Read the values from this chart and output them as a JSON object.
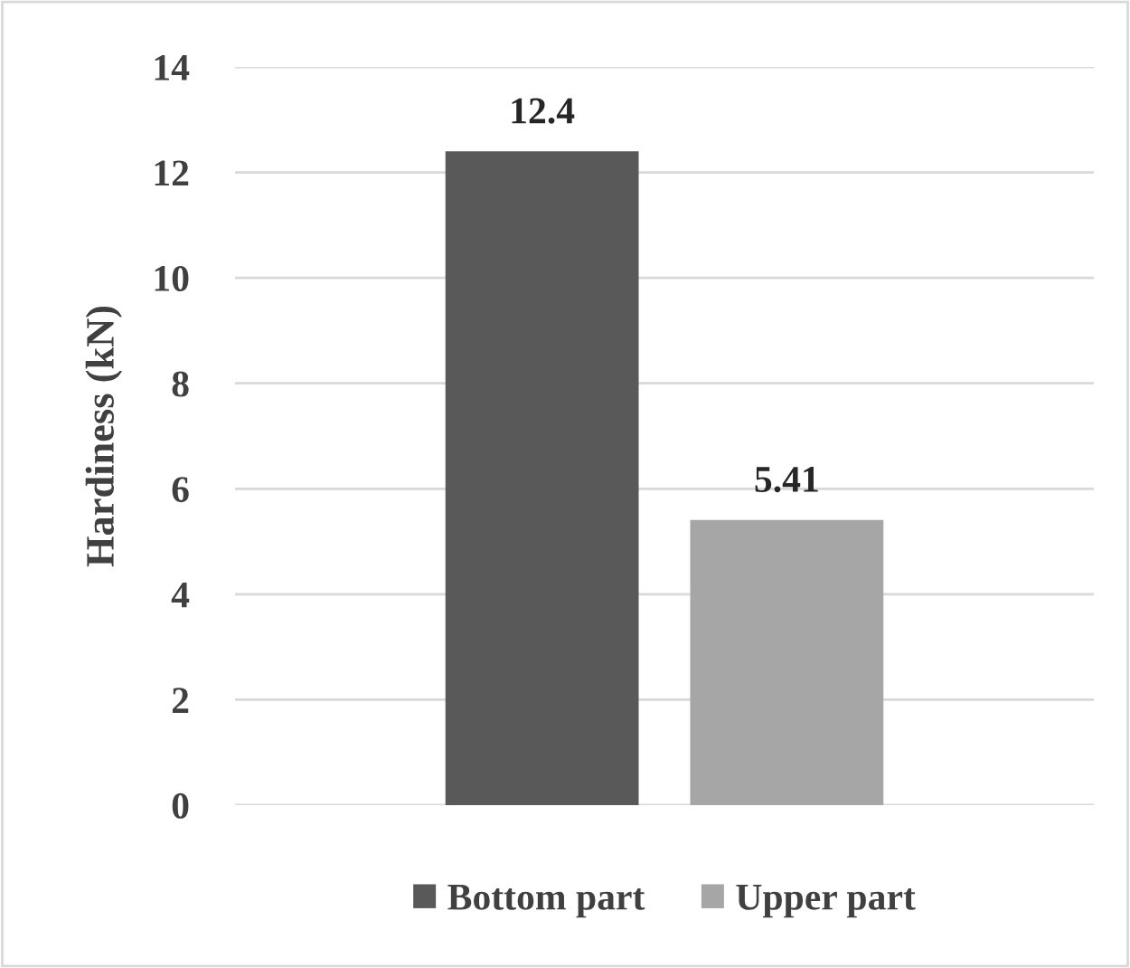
{
  "chart_data": {
    "type": "bar",
    "ylabel": "Hardiness (kN)",
    "categories": [
      null
    ],
    "series": [
      {
        "name": "Bottom part",
        "color": "#595959",
        "values": [
          12.4
        ]
      },
      {
        "name": "Upper part",
        "color": "#a6a6a6",
        "values": [
          5.41
        ]
      }
    ],
    "ylim": [
      0,
      14
    ],
    "yticks": [
      0,
      2,
      4,
      6,
      8,
      10,
      12,
      14
    ],
    "grid": "y",
    "legend": "bottom",
    "data_labels": true
  }
}
